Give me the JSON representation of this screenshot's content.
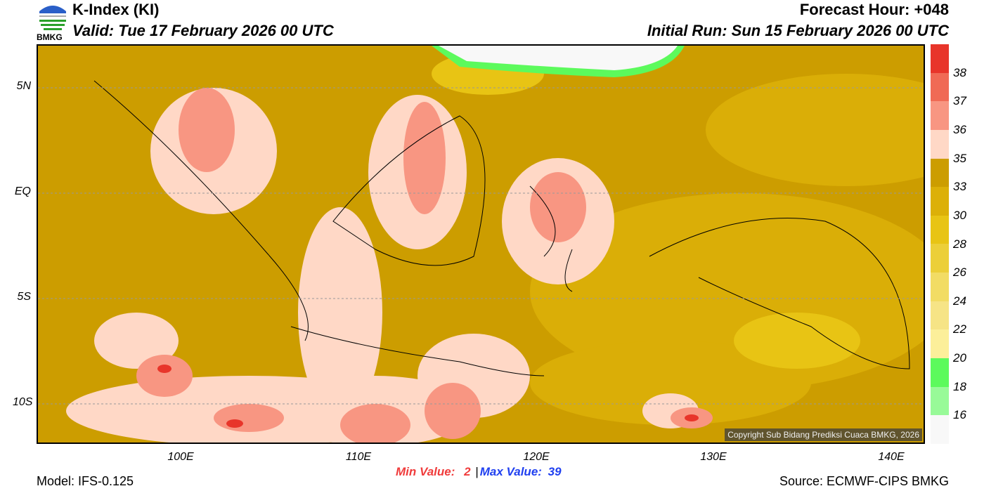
{
  "header": {
    "title": "K-Index (KI)",
    "valid": "Valid: Tue 17 February 2026 00 UTC",
    "forecast_hour": "Forecast Hour: +048",
    "initial_run": "Initial Run: Sun 15 February 2026 00 UTC",
    "logo_text": "BMKG"
  },
  "map": {
    "lat_labels": [
      "5N",
      "EQ",
      "5S",
      "10S"
    ],
    "lon_labels": [
      "100E",
      "110E",
      "120E",
      "130E",
      "140E"
    ],
    "copyright": "Copyright Sub Bidang Prediksi Cuaca BMKG, 2026"
  },
  "colorbar": {
    "labels": [
      "38",
      "37",
      "36",
      "35",
      "33",
      "30",
      "28",
      "26",
      "24",
      "22",
      "20",
      "18",
      "16"
    ],
    "colors": [
      "#e8352a",
      "#f06a55",
      "#f89682",
      "#ffd8c6",
      "#cc9d00",
      "#dcb008",
      "#e8c414",
      "#eccf38",
      "#f2dc64",
      "#f6e486",
      "#fcef9a",
      "#5cfa5c",
      "#98fa98",
      "#f8f8f8"
    ]
  },
  "footer": {
    "min_label": "Min Value:",
    "min_value": "2",
    "separator": "|",
    "max_label": "Max Value:",
    "max_value": "39",
    "model": "Model: IFS-0.125",
    "source": "Source: ECMWF-CIPS BMKG"
  }
}
